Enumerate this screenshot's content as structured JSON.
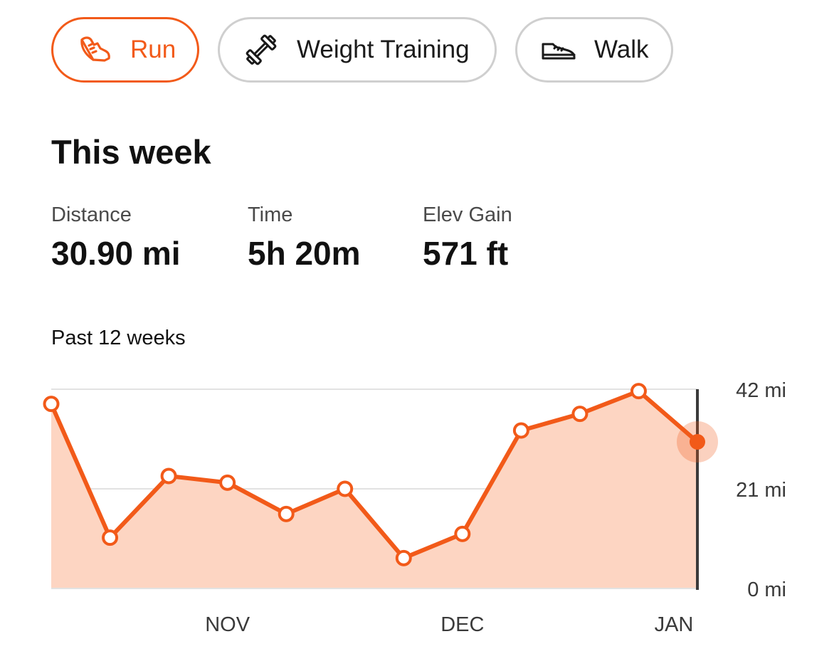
{
  "activity_tabs": [
    {
      "label": "Run",
      "icon": "running-shoe-icon",
      "selected": true
    },
    {
      "label": "Weight Training",
      "icon": "dumbbell-icon",
      "selected": false
    },
    {
      "label": "Walk",
      "icon": "walking-shoe-icon",
      "selected": false
    }
  ],
  "summary": {
    "title": "This week",
    "stats": [
      {
        "label": "Distance",
        "value": "30.90 mi"
      },
      {
        "label": "Time",
        "value": "5h 20m"
      },
      {
        "label": "Elev Gain",
        "value": "571 ft"
      }
    ]
  },
  "chart_caption": "Past 12 weeks",
  "colors": {
    "accent": "#f25a19",
    "area_fill": "#fdd5c2",
    "gridline": "#e2e2e2",
    "chip_border": "#cfcfcf"
  },
  "chart_data": {
    "type": "area",
    "unit": "mi",
    "y_ticks": [
      "42 mi",
      "21 mi",
      "0 mi"
    ],
    "ylim": [
      0,
      42
    ],
    "x_labels": [
      "NOV",
      "DEC",
      "JAN"
    ],
    "week_index_of_x_labels": [
      3,
      7,
      11
    ],
    "values": [
      38.9,
      10.7,
      23.7,
      22.3,
      15.7,
      21.0,
      6.4,
      11.5,
      33.3,
      36.8,
      41.6,
      30.9
    ],
    "selected_index": 11,
    "grid": true
  }
}
